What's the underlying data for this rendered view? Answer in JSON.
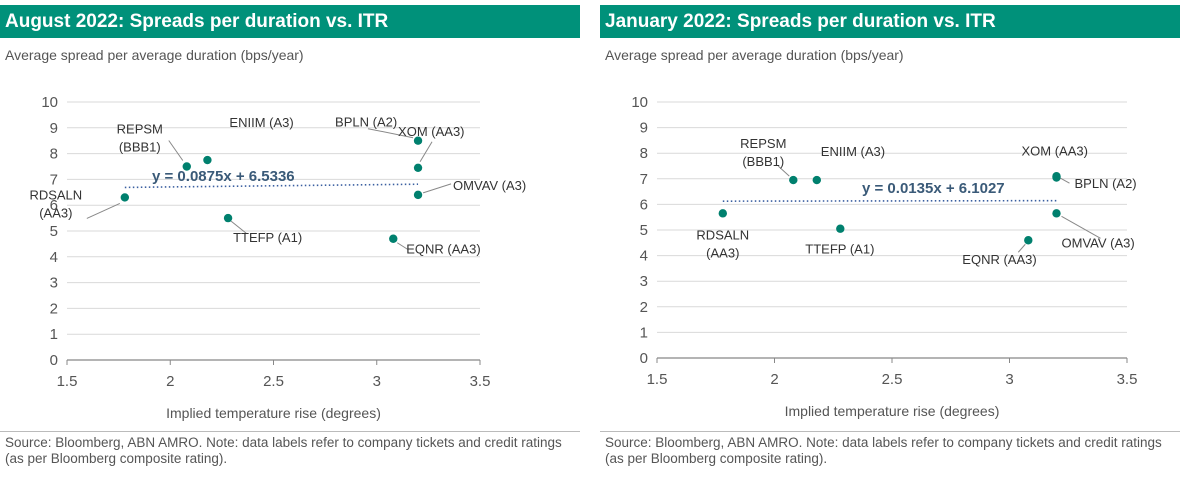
{
  "colors": {
    "accent": "#00917a",
    "point": "#00806e",
    "trend": "#3a5fa0",
    "leader": "#888888"
  },
  "panels": [
    {
      "title": "August 2022: Spreads per duration vs. ITR",
      "subtitle": "Average spread per average duration (bps/year)",
      "source": "Source: Bloomberg, ABN AMRO. Note: data labels refer to company tickets and credit ratings (as per Bloomberg composite rating).",
      "chart_data": {
        "type": "scatter",
        "xlabel": "Implied temperature rise (degrees)",
        "ylabel": "Average spread per average duration (bps/year)",
        "xlim": [
          1.5,
          3.5
        ],
        "ylim": [
          0,
          10
        ],
        "xticks": [
          "1.5",
          "2",
          "2.5",
          "3",
          "3.5"
        ],
        "yticks": [
          "0",
          "1",
          "2",
          "3",
          "4",
          "5",
          "6",
          "7",
          "8",
          "9",
          "10"
        ],
        "trendline": {
          "label": "y = 0.0875x + 6.5336",
          "slope": 0.0875,
          "intercept": 6.5336,
          "x_range": [
            1.78,
            3.2
          ]
        },
        "points": [
          {
            "label": "RDSALN\n(AA3)",
            "x": 1.78,
            "y": 6.3
          },
          {
            "label": "REPSM\n(BBB1)",
            "x": 2.08,
            "y": 7.5
          },
          {
            "label": "ENIIM (A3)",
            "x": 2.18,
            "y": 7.75
          },
          {
            "label": "TTEFP (A1)",
            "x": 2.28,
            "y": 5.5
          },
          {
            "label": "EQNR (AA3)",
            "x": 3.08,
            "y": 4.7
          },
          {
            "label": "BPLN (A2)",
            "x": 3.2,
            "y": 8.5
          },
          {
            "label": "XOM (AA3)",
            "x": 3.2,
            "y": 7.45
          },
          {
            "label": "OMVAV (A3)",
            "x": 3.2,
            "y": 6.4
          }
        ]
      }
    },
    {
      "title": "January 2022: Spreads per duration vs. ITR",
      "subtitle": "Average spread per average duration (bps/year)",
      "source": " Source: Bloomberg, ABN AMRO.  Note: data labels refer to company tickets and credit ratings (as per Bloomberg composite rating).",
      "chart_data": {
        "type": "scatter",
        "xlabel": "Implied temperature rise (degrees)",
        "ylabel": "Average spread per average duration (bps/year)",
        "xlim": [
          1.5,
          3.5
        ],
        "ylim": [
          0,
          10
        ],
        "xticks": [
          "1.5",
          "2",
          "2.5",
          "3",
          "3.5"
        ],
        "yticks": [
          "0",
          "1",
          "2",
          "3",
          "4",
          "5",
          "6",
          "7",
          "8",
          "9",
          "10"
        ],
        "trendline": {
          "label": "y = 0.0135x + 6.1027",
          "slope": 0.0135,
          "intercept": 6.1027,
          "x_range": [
            1.78,
            3.2
          ]
        },
        "points": [
          {
            "label": "RDSALN\n(AA3)",
            "x": 1.78,
            "y": 5.65
          },
          {
            "label": "REPSM\n(BBB1)",
            "x": 2.08,
            "y": 6.95
          },
          {
            "label": "ENIIM (A3)",
            "x": 2.18,
            "y": 6.95
          },
          {
            "label": "TTEFP (A1)",
            "x": 2.28,
            "y": 5.05
          },
          {
            "label": "EQNR (AA3)",
            "x": 3.08,
            "y": 4.6
          },
          {
            "label": "XOM (AA3)",
            "x": 3.2,
            "y": 7.05
          },
          {
            "label": "BPLN (A2)",
            "x": 3.2,
            "y": 7.1
          },
          {
            "label": "OMVAV (A3)",
            "x": 3.2,
            "y": 5.65
          }
        ]
      }
    }
  ]
}
